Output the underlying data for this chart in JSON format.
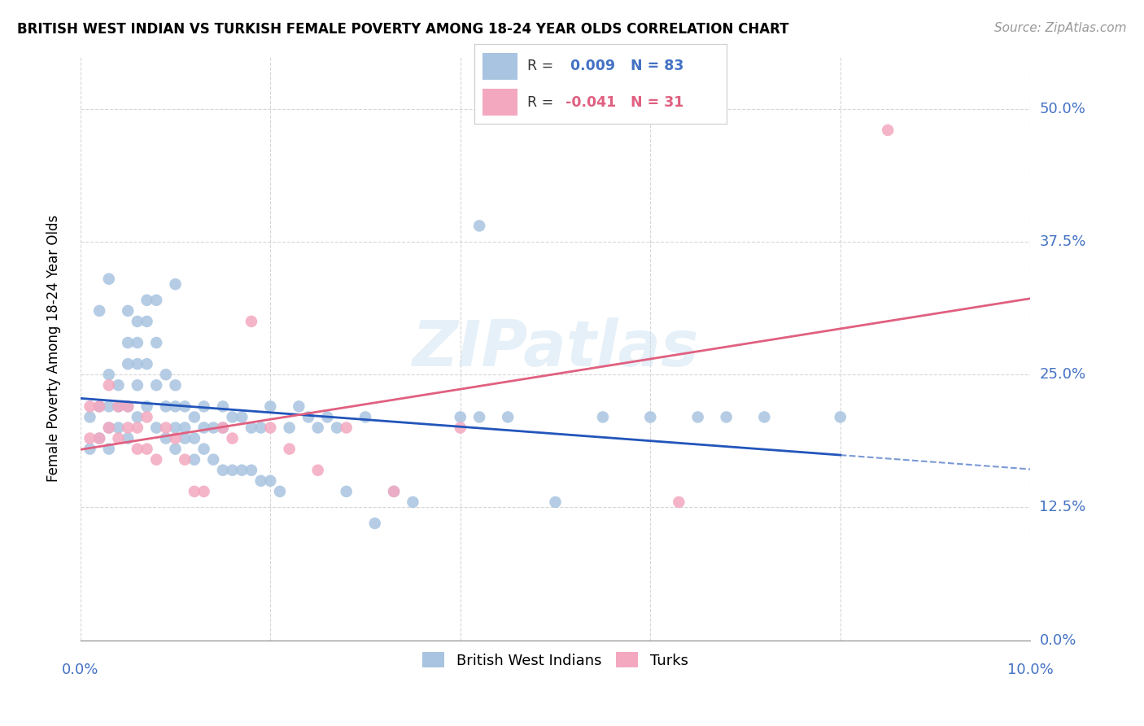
{
  "title": "BRITISH WEST INDIAN VS TURKISH FEMALE POVERTY AMONG 18-24 YEAR OLDS CORRELATION CHART",
  "source": "Source: ZipAtlas.com",
  "ylabel": "Female Poverty Among 18-24 Year Olds",
  "xlim": [
    0.0,
    0.1
  ],
  "ylim": [
    0.0,
    0.55
  ],
  "yticks": [
    0.0,
    0.125,
    0.25,
    0.375,
    0.5
  ],
  "color_bwi": "#a8c4e0",
  "color_turk": "#f4a8c0",
  "color_bwi_line": "#2255bb",
  "color_turk_line": "#e06080",
  "color_bwi_text": "#4472c4",
  "color_turk_text": "#e06080",
  "R_bwi": 0.009,
  "N_bwi": 83,
  "R_turk": -0.041,
  "N_turk": 31,
  "watermark": "ZIPatlas",
  "bwi_x": [
    0.001,
    0.001,
    0.002,
    0.002,
    0.002,
    0.003,
    0.003,
    0.003,
    0.003,
    0.004,
    0.004,
    0.004,
    0.005,
    0.005,
    0.005,
    0.005,
    0.005,
    0.006,
    0.006,
    0.006,
    0.006,
    0.006,
    0.007,
    0.007,
    0.007,
    0.007,
    0.008,
    0.008,
    0.008,
    0.008,
    0.009,
    0.009,
    0.009,
    0.01,
    0.01,
    0.01,
    0.01,
    0.011,
    0.011,
    0.011,
    0.012,
    0.012,
    0.012,
    0.013,
    0.013,
    0.013,
    0.014,
    0.014,
    0.015,
    0.015,
    0.015,
    0.016,
    0.016,
    0.017,
    0.017,
    0.018,
    0.018,
    0.019,
    0.019,
    0.02,
    0.02,
    0.021,
    0.022,
    0.023,
    0.024,
    0.025,
    0.026,
    0.027,
    0.028,
    0.03,
    0.031,
    0.033,
    0.035,
    0.04,
    0.042,
    0.045,
    0.05,
    0.055,
    0.06,
    0.065,
    0.068,
    0.072,
    0.08
  ],
  "bwi_y": [
    0.21,
    0.18,
    0.31,
    0.22,
    0.19,
    0.25,
    0.22,
    0.2,
    0.18,
    0.24,
    0.22,
    0.2,
    0.31,
    0.28,
    0.26,
    0.22,
    0.19,
    0.3,
    0.28,
    0.26,
    0.24,
    0.21,
    0.32,
    0.3,
    0.26,
    0.22,
    0.32,
    0.28,
    0.24,
    0.2,
    0.25,
    0.22,
    0.19,
    0.24,
    0.22,
    0.2,
    0.18,
    0.22,
    0.2,
    0.19,
    0.21,
    0.19,
    0.17,
    0.22,
    0.2,
    0.18,
    0.2,
    0.17,
    0.22,
    0.2,
    0.16,
    0.21,
    0.16,
    0.21,
    0.16,
    0.2,
    0.16,
    0.2,
    0.15,
    0.22,
    0.15,
    0.14,
    0.2,
    0.22,
    0.21,
    0.2,
    0.21,
    0.2,
    0.14,
    0.21,
    0.11,
    0.14,
    0.13,
    0.21,
    0.21,
    0.21,
    0.13,
    0.21,
    0.21,
    0.21,
    0.21,
    0.21,
    0.21
  ],
  "turk_x": [
    0.001,
    0.001,
    0.002,
    0.002,
    0.003,
    0.003,
    0.004,
    0.004,
    0.005,
    0.005,
    0.006,
    0.006,
    0.007,
    0.007,
    0.008,
    0.009,
    0.01,
    0.011,
    0.012,
    0.013,
    0.015,
    0.016,
    0.018,
    0.02,
    0.022,
    0.025,
    0.028,
    0.033,
    0.04,
    0.063,
    0.085
  ],
  "turk_y": [
    0.22,
    0.19,
    0.22,
    0.19,
    0.24,
    0.2,
    0.22,
    0.19,
    0.22,
    0.2,
    0.2,
    0.18,
    0.21,
    0.18,
    0.17,
    0.2,
    0.19,
    0.17,
    0.14,
    0.14,
    0.2,
    0.19,
    0.3,
    0.2,
    0.18,
    0.16,
    0.2,
    0.14,
    0.2,
    0.13,
    0.48
  ]
}
